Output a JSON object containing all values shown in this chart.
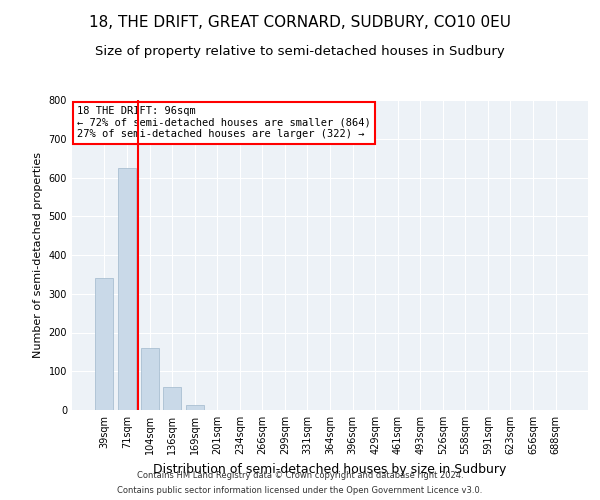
{
  "title": "18, THE DRIFT, GREAT CORNARD, SUDBURY, CO10 0EU",
  "subtitle": "Size of property relative to semi-detached houses in Sudbury",
  "xlabel": "Distribution of semi-detached houses by size in Sudbury",
  "ylabel": "Number of semi-detached properties",
  "footnote1": "Contains HM Land Registry data © Crown copyright and database right 2024.",
  "footnote2": "Contains public sector information licensed under the Open Government Licence v3.0.",
  "annotation_title": "18 THE DRIFT: 96sqm",
  "annotation_line1": "← 72% of semi-detached houses are smaller (864)",
  "annotation_line2": "27% of semi-detached houses are larger (322) →",
  "bar_color": "#c9d9e8",
  "bar_edge_color": "#a0b8cc",
  "vline_color": "red",
  "annotation_box_color": "red",
  "background_color": "#edf2f7",
  "categories": [
    "39sqm",
    "71sqm",
    "104sqm",
    "136sqm",
    "169sqm",
    "201sqm",
    "234sqm",
    "266sqm",
    "299sqm",
    "331sqm",
    "364sqm",
    "396sqm",
    "429sqm",
    "461sqm",
    "493sqm",
    "526sqm",
    "558sqm",
    "591sqm",
    "623sqm",
    "656sqm",
    "688sqm"
  ],
  "values": [
    340,
    625,
    160,
    60,
    13,
    1,
    0,
    0,
    0,
    0,
    0,
    0,
    0,
    0,
    0,
    0,
    0,
    0,
    0,
    0,
    0
  ],
  "ylim": [
    0,
    800
  ],
  "yticks": [
    0,
    100,
    200,
    300,
    400,
    500,
    600,
    700,
    800
  ],
  "vline_position": 1.5,
  "title_fontsize": 11,
  "subtitle_fontsize": 9.5,
  "xlabel_fontsize": 9,
  "ylabel_fontsize": 8,
  "footnote_fontsize": 6,
  "tick_fontsize": 7,
  "annotation_fontsize": 7.5
}
